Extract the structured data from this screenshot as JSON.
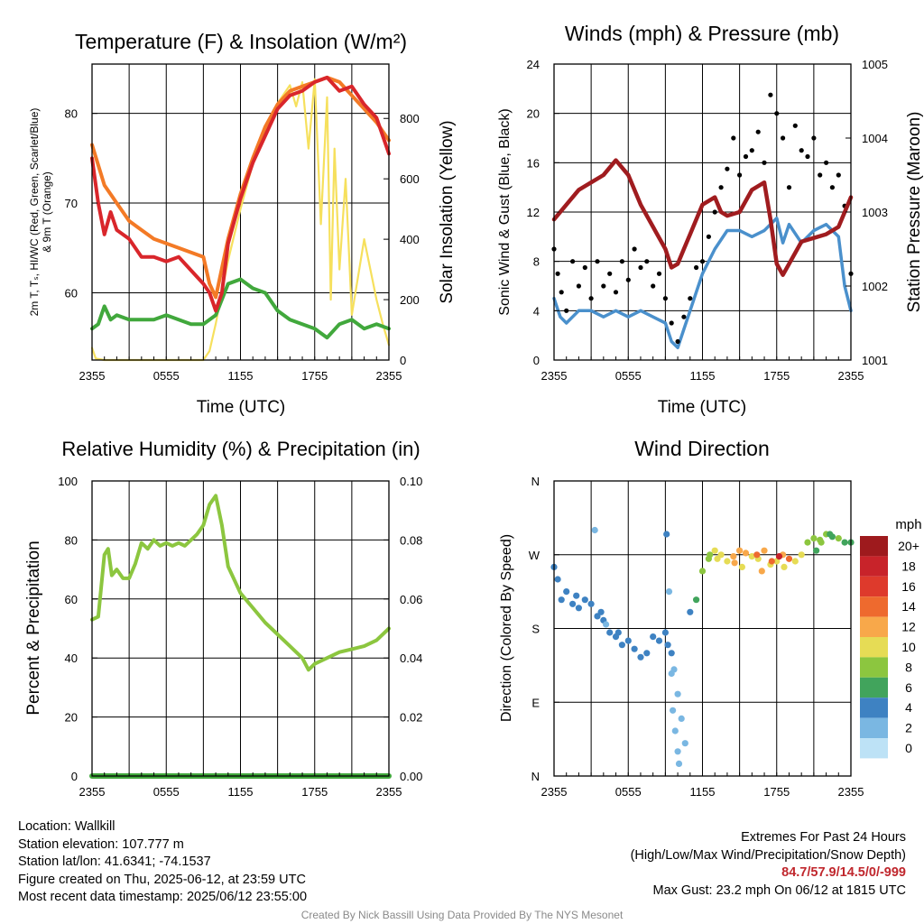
{
  "panels": {
    "temp": {
      "title": "Temperature (F) & Insolation (W/m²)",
      "ylabel_left_line1": "2m T, Tₛ, HI/WC (Red, Green, Scarlet/Blue)",
      "ylabel_left_line2": "& 9m T (Orange)",
      "ylabel_right": "Solar Insolation (Yellow)",
      "xlabel": "Time (UTC)"
    },
    "wind": {
      "title": "Winds (mph) & Pressure (mb)",
      "ylabel_left": "Sonic Wind & Gust (Blue, Black)",
      "ylabel_right": "Station Pressure (Maroon)",
      "xlabel": "Time (UTC)"
    },
    "rh": {
      "title": "Relative Humidity (%) & Precipitation (in)",
      "ylabel_left": "Percent & Precipitation"
    },
    "dir": {
      "title": "Wind Direction",
      "ylabel_left": "Direction (Colored By Speed)",
      "legend_title": "mph"
    }
  },
  "chart_data": [
    {
      "type": "line",
      "id": "temp",
      "title": "Temperature (F) & Insolation (W/m²)",
      "xlabel": "Time (UTC)",
      "x_tick_labels": [
        "2355",
        "0555",
        "1155",
        "1755",
        "2355"
      ],
      "xlim_hours": [
        0,
        24
      ],
      "ylim": [
        52.5,
        85.5
      ],
      "y_ticks": [
        60,
        70,
        80
      ],
      "ylim_right": [
        0,
        980
      ],
      "y_ticks_right": [
        0,
        200,
        400,
        600,
        800
      ],
      "series": [
        {
          "color": "#f37a26",
          "axis": "left",
          "x": [
            0,
            1,
            2,
            3,
            4,
            5,
            6,
            7,
            8,
            9,
            9.5,
            10,
            11,
            12,
            13,
            14,
            15,
            16,
            17,
            18,
            19,
            20,
            21,
            22,
            23,
            24
          ],
          "y": [
            76.5,
            72,
            70,
            68,
            67,
            66,
            65.5,
            65,
            64.5,
            64,
            61,
            59.5,
            66,
            71,
            75,
            78.5,
            81,
            82.5,
            83,
            83.5,
            84,
            83.5,
            82,
            80.5,
            79,
            77
          ]
        },
        {
          "color": "#d9262b",
          "axis": "left",
          "x": [
            0,
            0.5,
            1,
            1.5,
            2,
            3,
            4,
            5,
            6,
            7,
            8,
            9,
            9.5,
            10,
            10.5,
            11,
            12,
            13,
            14,
            15,
            16,
            17,
            18,
            19,
            20,
            21,
            22,
            23,
            24
          ],
          "y": [
            75,
            70,
            66.5,
            69,
            67,
            66,
            64,
            64,
            63.5,
            64,
            62.5,
            61,
            60,
            58,
            60,
            65.5,
            70.5,
            74.5,
            77.5,
            80.5,
            82,
            82.5,
            83.5,
            84,
            82.5,
            83,
            81,
            79.5,
            75.5
          ]
        },
        {
          "color": "#41a83c",
          "axis": "left",
          "x": [
            0,
            0.5,
            1,
            1.5,
            2,
            3,
            4,
            5,
            6,
            7,
            8,
            9,
            10,
            11,
            12,
            13,
            14,
            15,
            16,
            17,
            18,
            19,
            20,
            21,
            22,
            23,
            24
          ],
          "y": [
            56,
            56.5,
            58.5,
            57,
            57.5,
            57,
            57,
            57,
            57.5,
            57,
            56.5,
            56.5,
            57.5,
            61,
            61.5,
            60.5,
            60,
            58,
            57,
            56.5,
            56,
            55,
            56.5,
            57,
            56,
            56.5,
            56
          ]
        },
        {
          "color": "#f6e05d",
          "axis": "right",
          "x": [
            0,
            0.3,
            1,
            3,
            5,
            7,
            8,
            9,
            9.5,
            10,
            11,
            12,
            13,
            14,
            15,
            16,
            16.5,
            17,
            17.5,
            18,
            18.5,
            19,
            19.3,
            19.6,
            20,
            20.5,
            21,
            22,
            23,
            23.5,
            24
          ],
          "y": [
            40,
            5,
            0,
            0,
            0,
            0,
            0,
            0,
            30,
            120,
            330,
            500,
            650,
            760,
            850,
            910,
            840,
            920,
            700,
            930,
            450,
            870,
            200,
            700,
            300,
            600,
            150,
            400,
            200,
            120,
            50
          ]
        }
      ]
    },
    {
      "type": "line",
      "id": "wind",
      "title": "Winds (mph) & Pressure (mb)",
      "xlabel": "Time (UTC)",
      "x_tick_labels": [
        "2355",
        "0555",
        "1155",
        "1755",
        "2355"
      ],
      "xlim_hours": [
        0,
        24
      ],
      "ylim": [
        0,
        24
      ],
      "y_ticks": [
        0,
        4,
        8,
        12,
        16,
        20,
        24
      ],
      "ylim_right": [
        1001,
        1005
      ],
      "y_ticks_right": [
        1001,
        1002,
        1003,
        1004,
        1005
      ],
      "series": [
        {
          "name": "Sonic Wind",
          "color": "#4a90cc",
          "axis": "left",
          "x": [
            0,
            0.5,
            1,
            2,
            3,
            4,
            5,
            6,
            7,
            8,
            9,
            9.5,
            10,
            10.5,
            11,
            11.5,
            12,
            13,
            14,
            15,
            16,
            17,
            18,
            18.5,
            19,
            20,
            21,
            22,
            23,
            23.5,
            24
          ],
          "y": [
            5,
            3.5,
            3,
            4,
            4,
            3.5,
            4,
            3.5,
            4,
            3.5,
            3,
            1.5,
            1,
            2.5,
            4,
            5.5,
            7,
            9,
            10.5,
            10.5,
            10,
            10.5,
            11.5,
            9.5,
            11,
            9.5,
            10.5,
            11,
            10,
            6,
            4
          ]
        },
        {
          "name": "Pressure",
          "color": "#a01c1f",
          "axis": "right",
          "x": [
            0,
            1,
            2,
            3,
            4,
            5,
            6,
            7,
            8,
            9,
            9.5,
            10,
            10.5,
            11,
            12,
            13,
            13.5,
            14,
            15,
            16,
            17,
            17.5,
            18,
            18.5,
            19,
            20,
            21,
            22,
            23,
            24
          ],
          "y": [
            1002.9,
            1003.1,
            1003.3,
            1003.4,
            1003.5,
            1003.7,
            1003.5,
            1003.1,
            1002.8,
            1002.5,
            1002.25,
            1002.3,
            1002.5,
            1002.7,
            1003.1,
            1003.2,
            1003.0,
            1002.95,
            1003.0,
            1003.3,
            1003.4,
            1002.9,
            1002.3,
            1002.15,
            1002.3,
            1002.6,
            1002.65,
            1002.7,
            1002.8,
            1003.2
          ]
        },
        {
          "name": "Gust",
          "color": "#000000",
          "axis": "left",
          "style": "dots",
          "x": [
            0,
            0.3,
            0.6,
            1,
            1.5,
            2,
            2.5,
            3,
            3.5,
            4,
            4.5,
            5,
            5.5,
            6,
            6.5,
            7,
            7.5,
            8,
            8.5,
            9,
            9.5,
            10,
            10.5,
            11,
            11.5,
            12,
            12.5,
            13,
            13.5,
            14,
            14.5,
            15,
            15.5,
            16,
            16.5,
            17,
            17.5,
            18,
            18.5,
            19,
            19.5,
            20,
            20.5,
            21,
            21.5,
            22,
            22.5,
            23,
            23.5,
            24
          ],
          "y": [
            9,
            7,
            5.5,
            4,
            8,
            6,
            7.5,
            5,
            8,
            6,
            7,
            5.5,
            8,
            6.5,
            9,
            7.5,
            8,
            6,
            7,
            5,
            3,
            1.5,
            3.5,
            5,
            7.5,
            8,
            10,
            12,
            14,
            15.5,
            18,
            15,
            16.5,
            17,
            18.5,
            16,
            21.5,
            20,
            18,
            14,
            19,
            17,
            16.5,
            18,
            15,
            16,
            14,
            15,
            12.5,
            7
          ]
        }
      ]
    },
    {
      "type": "line",
      "id": "rh",
      "title": "Relative Humidity (%) & Precipitation (in)",
      "x_tick_labels": [
        "2355",
        "0555",
        "1155",
        "1755",
        "2355"
      ],
      "xlim_hours": [
        0,
        24
      ],
      "ylim": [
        0,
        100
      ],
      "y_ticks": [
        0,
        20,
        40,
        60,
        80,
        100
      ],
      "ylim_right": [
        0,
        0.1
      ],
      "y_ticks_right": [
        0.0,
        0.02,
        0.04,
        0.06,
        0.08,
        0.1
      ],
      "series": [
        {
          "name": "Relative Humidity",
          "color": "#8cc63f",
          "axis": "left",
          "x": [
            0,
            0.5,
            1,
            1.3,
            1.6,
            2,
            2.5,
            3,
            3.5,
            4,
            4.5,
            5,
            5.5,
            6,
            6.5,
            7,
            7.5,
            8,
            8.5,
            9,
            9.5,
            10,
            10.5,
            11,
            12,
            13,
            14,
            15,
            16,
            17,
            17.5,
            18,
            19,
            20,
            21,
            22,
            23,
            24
          ],
          "y": [
            53,
            54,
            75,
            77,
            68,
            70,
            67,
            67,
            72,
            79,
            77,
            80,
            78,
            79,
            78,
            79,
            78,
            80,
            82,
            85,
            92,
            95,
            85,
            71,
            62,
            57,
            52,
            48,
            44,
            40,
            36,
            38,
            40,
            42,
            43,
            44,
            46,
            50
          ]
        },
        {
          "name": "Precipitation",
          "color": "#41a83c",
          "axis": "right",
          "x": [
            0,
            24
          ],
          "y": [
            0,
            0
          ]
        }
      ]
    },
    {
      "type": "scatter",
      "id": "dir",
      "title": "Wind Direction",
      "x_tick_labels": [
        "2355",
        "0555",
        "1155",
        "1755",
        "2355"
      ],
      "xlim_hours": [
        0,
        24
      ],
      "ylim_deg": [
        0,
        360
      ],
      "y_tick_labels": [
        "N",
        "E",
        "S",
        "W",
        "N"
      ],
      "legend": {
        "title": "mph",
        "labels": [
          "20+",
          "18",
          "16",
          "14",
          "12",
          "10",
          "8",
          "6",
          "4",
          "2",
          "0"
        ],
        "colors": [
          "#9e1a1d",
          "#c8232a",
          "#de3a2c",
          "#ee6a2e",
          "#f8a84a",
          "#e6dc55",
          "#8cc63f",
          "#41a45c",
          "#3e82c2",
          "#7ab7e2",
          "#bde2f6"
        ]
      },
      "points_hours": [
        0,
        0.3,
        0.6,
        1,
        1.5,
        1.8,
        2,
        2.5,
        3,
        3.5,
        3.8,
        4,
        4.5,
        5,
        5.5,
        6,
        6.5,
        7,
        7.5,
        8,
        8.5,
        9,
        9.2,
        9.5,
        9.7,
        10,
        10.3,
        10.6,
        11,
        11.5,
        12,
        12.5,
        13,
        13.5,
        14,
        14.5,
        15,
        15.5,
        16,
        16.5,
        17,
        17.5,
        18,
        18.5,
        19,
        19.5,
        20,
        20.5,
        21,
        21.5,
        22,
        22.5,
        23,
        23.5,
        24,
        3.3,
        4.2,
        5.2,
        9.1,
        9.3,
        9.5,
        9.6,
        9.8,
        10,
        10.1,
        12.6,
        13.2,
        14.6,
        15.2,
        16.4,
        16.8,
        17.6,
        18.2,
        18.6,
        21.2,
        21.6,
        22.3
      ],
      "points_deg": [
        255,
        240,
        215,
        225,
        210,
        220,
        205,
        215,
        210,
        195,
        200,
        190,
        175,
        170,
        160,
        165,
        155,
        145,
        150,
        170,
        165,
        175,
        160,
        150,
        130,
        100,
        70,
        40,
        200,
        215,
        250,
        265,
        275,
        270,
        262,
        268,
        275,
        272,
        268,
        265,
        275,
        258,
        262,
        270,
        265,
        262,
        270,
        285,
        290,
        288,
        295,
        292,
        290,
        285,
        285,
        300,
        185,
        175,
        295,
        225,
        125,
        80,
        55,
        30,
        15,
        270,
        265,
        260,
        255,
        270,
        250,
        262,
        268,
        255,
        275,
        285,
        295
      ],
      "points_speed": [
        4,
        4,
        4,
        3,
        3,
        4,
        4,
        4,
        4,
        3,
        3,
        4,
        4,
        4,
        4,
        4,
        4,
        4,
        4,
        3,
        3,
        4,
        4,
        3,
        1,
        1,
        1,
        1,
        4,
        5,
        7,
        8,
        9,
        9,
        10,
        11,
        12,
        11,
        10,
        9,
        12,
        10,
        10,
        11,
        13,
        9,
        10,
        7,
        8,
        7,
        8,
        6,
        8,
        6,
        5,
        1,
        2,
        3,
        4,
        1,
        1,
        1,
        1,
        1,
        1,
        8,
        9,
        11,
        10,
        14,
        12,
        13,
        17,
        9,
        6,
        7,
        5
      ]
    }
  ],
  "footer": {
    "location": "Location: Wallkill",
    "elevation": "Station elevation: 107.777 m",
    "latlon": "Station lat/lon: 41.6341; -74.1537",
    "created": "Figure created on Thu, 2025-06-12, at 23:59 UTC",
    "recent": "Most recent data timestamp: 2025/06/12 23:55:00",
    "extremes_title": "Extremes For Past 24 Hours",
    "extremes_desc": "(High/Low/Max Wind/Precipitation/Snow Depth)",
    "extremes_values": "84.7/57.9/14.5/0/-999",
    "max_gust": "Max Gust: 23.2 mph On 06/12 at 1815 UTC",
    "credit": "Created By Nick Bassill Using Data Provided By The NYS Mesonet"
  }
}
